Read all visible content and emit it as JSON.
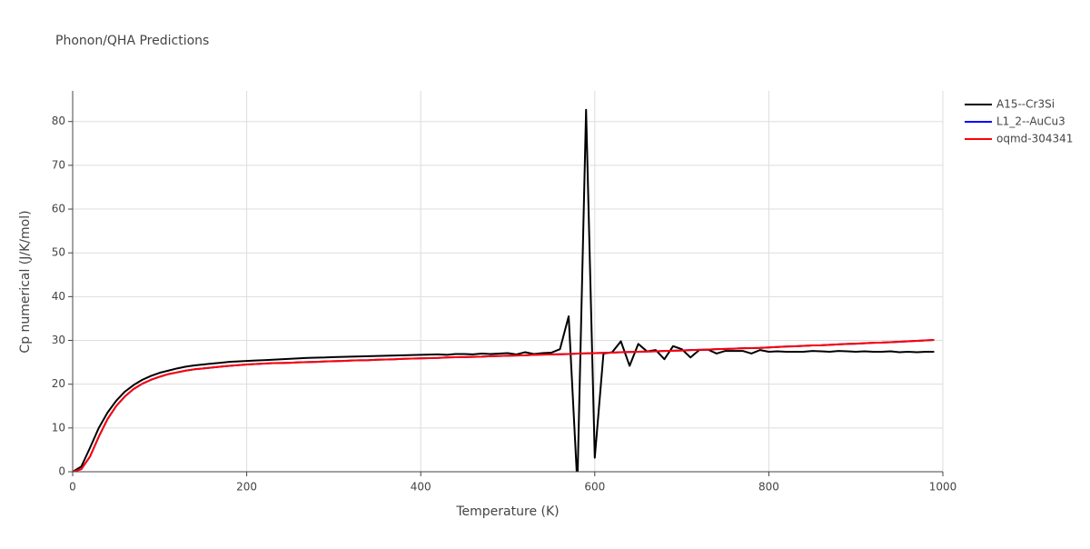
{
  "chart_data": {
    "type": "line",
    "title": "Phonon/QHA Predictions",
    "x_label": "Temperature (K)",
    "y_label": "Cp numerical (J/K/mol)",
    "x": [
      0,
      10,
      20,
      30,
      40,
      50,
      60,
      70,
      80,
      90,
      100,
      110,
      120,
      130,
      140,
      150,
      160,
      170,
      180,
      190,
      200,
      210,
      220,
      230,
      240,
      250,
      260,
      270,
      280,
      290,
      300,
      310,
      320,
      330,
      340,
      350,
      360,
      370,
      380,
      390,
      400,
      410,
      420,
      430,
      440,
      450,
      460,
      470,
      480,
      490,
      500,
      510,
      520,
      530,
      540,
      550,
      560,
      570,
      580,
      590,
      600,
      610,
      620,
      630,
      640,
      650,
      660,
      670,
      680,
      690,
      700,
      710,
      720,
      730,
      740,
      750,
      760,
      770,
      780,
      790,
      800,
      810,
      820,
      830,
      840,
      850,
      860,
      870,
      880,
      890,
      900,
      910,
      920,
      930,
      940,
      950,
      960,
      970,
      980,
      990
    ],
    "series": [
      {
        "name": "A15--Cr3Si",
        "color": "#000000",
        "values": [
          0,
          1.2,
          5.5,
          10,
          13.5,
          16.2,
          18.3,
          19.8,
          21,
          21.9,
          22.6,
          23.1,
          23.6,
          24,
          24.3,
          24.5,
          24.7,
          24.9,
          25.1,
          25.2,
          25.3,
          25.4,
          25.5,
          25.6,
          25.7,
          25.8,
          25.9,
          26,
          26.05,
          26.1,
          26.2,
          26.25,
          26.3,
          26.35,
          26.4,
          26.45,
          26.5,
          26.55,
          26.6,
          26.65,
          26.7,
          26.75,
          26.8,
          26.7,
          26.9,
          26.9,
          26.8,
          27,
          26.9,
          27,
          27.1,
          26.8,
          27.3,
          26.9,
          27.1,
          27.2,
          28,
          35.5,
          -3,
          82.7,
          3.2,
          27,
          27.3,
          29.8,
          24.2,
          29.2,
          27.5,
          27.8,
          25.7,
          28.7,
          28,
          26.1,
          27.8,
          27.9,
          27,
          27.6,
          27.6,
          27.6,
          27,
          27.8,
          27.4,
          27.5,
          27.4,
          27.4,
          27.4,
          27.6,
          27.5,
          27.4,
          27.6,
          27.5,
          27.4,
          27.5,
          27.4,
          27.4,
          27.5,
          27.3,
          27.4,
          27.3,
          27.4,
          27.4
        ]
      },
      {
        "name": "L1_2--AuCu3",
        "color": "#0000ff",
        "values": [
          0,
          0.6,
          3.5,
          8,
          12,
          15,
          17.2,
          18.9,
          20.1,
          21,
          21.7,
          22.3,
          22.7,
          23.1,
          23.4,
          23.6,
          23.8,
          24,
          24.2,
          24.35,
          24.5,
          24.6,
          24.7,
          24.8,
          24.85,
          24.9,
          25,
          25.05,
          25.1,
          25.2,
          25.25,
          25.3,
          25.4,
          25.45,
          25.5,
          25.6,
          25.65,
          25.7,
          25.8,
          25.85,
          25.9,
          25.95,
          26,
          26.1,
          26.15,
          26.2,
          26.25,
          26.3,
          26.4,
          26.45,
          26.5,
          26.55,
          26.6,
          26.7,
          26.75,
          26.8,
          26.85,
          26.9,
          27,
          27.05,
          27.1,
          27.15,
          27.2,
          27.3,
          27.35,
          27.4,
          27.45,
          27.5,
          27.6,
          27.65,
          27.7,
          27.8,
          27.85,
          27.9,
          28,
          28.05,
          28.1,
          28.2,
          28.25,
          28.3,
          28.4,
          28.5,
          28.6,
          28.65,
          28.75,
          28.85,
          28.9,
          29,
          29.1,
          29.2,
          29.25,
          29.35,
          29.45,
          29.5,
          29.6,
          29.7,
          29.8,
          29.9,
          30,
          30.1
        ]
      },
      {
        "name": "oqmd-304341",
        "color": "#ff0000",
        "values": [
          0,
          0.6,
          3.5,
          8,
          12,
          15,
          17.2,
          18.9,
          20.1,
          21,
          21.7,
          22.3,
          22.7,
          23.1,
          23.4,
          23.6,
          23.8,
          24,
          24.2,
          24.35,
          24.5,
          24.6,
          24.7,
          24.8,
          24.85,
          24.9,
          25,
          25.05,
          25.1,
          25.2,
          25.25,
          25.3,
          25.4,
          25.45,
          25.5,
          25.6,
          25.65,
          25.7,
          25.8,
          25.85,
          25.9,
          25.95,
          26,
          26.1,
          26.15,
          26.2,
          26.25,
          26.3,
          26.4,
          26.45,
          26.5,
          26.55,
          26.6,
          26.7,
          26.75,
          26.8,
          26.85,
          26.9,
          27,
          27.05,
          27.1,
          27.15,
          27.2,
          27.3,
          27.35,
          27.4,
          27.45,
          27.5,
          27.6,
          27.65,
          27.7,
          27.8,
          27.85,
          27.9,
          28,
          28.05,
          28.1,
          28.2,
          28.25,
          28.3,
          28.4,
          28.5,
          28.6,
          28.65,
          28.75,
          28.85,
          28.9,
          29,
          29.1,
          29.2,
          29.25,
          29.35,
          29.45,
          29.5,
          29.6,
          29.7,
          29.8,
          29.9,
          30,
          30.1
        ]
      }
    ],
    "xlim": [
      0,
      1000
    ],
    "xticks": [
      0,
      200,
      400,
      600,
      800,
      1000
    ],
    "ylim": [
      0,
      87
    ],
    "yticks": [
      0,
      10,
      20,
      30,
      40,
      50,
      60,
      70,
      80
    ],
    "grid": true,
    "legend": "right"
  }
}
